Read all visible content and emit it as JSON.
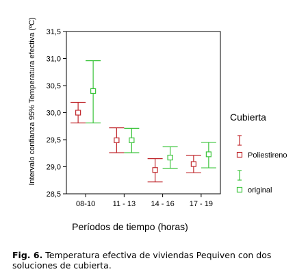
{
  "chart_data": {
    "type": "errorbar",
    "ylabel": "Intervalo confianza 95%  Temperatura efectiva (ºC)",
    "xlabel": "Períodos de tiempo (horas)",
    "categories": [
      "08-10",
      "11 - 13",
      "14 - 16",
      "17 - 19"
    ],
    "ylim": [
      28.5,
      31.5
    ],
    "yticks": [
      "28,5",
      "29,0",
      "29,5",
      "30,0",
      "30,5",
      "31,0",
      "31,5"
    ],
    "ytick_values": [
      28.5,
      29.0,
      29.5,
      30.0,
      30.5,
      31.0,
      31.5
    ],
    "legend_title": "Cubierta",
    "series": [
      {
        "name": "Poliestireno",
        "color": "#c0282d",
        "mean": [
          30.0,
          29.49,
          28.94,
          29.05
        ],
        "lower": [
          29.81,
          29.26,
          28.72,
          28.89
        ],
        "upper": [
          30.19,
          29.72,
          29.15,
          29.21
        ]
      },
      {
        "name": "original",
        "color": "#3ac43a",
        "mean": [
          30.4,
          29.49,
          29.17,
          29.23
        ],
        "lower": [
          29.81,
          29.26,
          28.97,
          28.98
        ],
        "upper": [
          30.96,
          29.71,
          29.37,
          29.45
        ]
      }
    ]
  },
  "caption": {
    "label": "Fig. 6.",
    "text": " Temperatura  efectiva  de viviendas Pequiven con dos soluciones  de  cubierta."
  }
}
